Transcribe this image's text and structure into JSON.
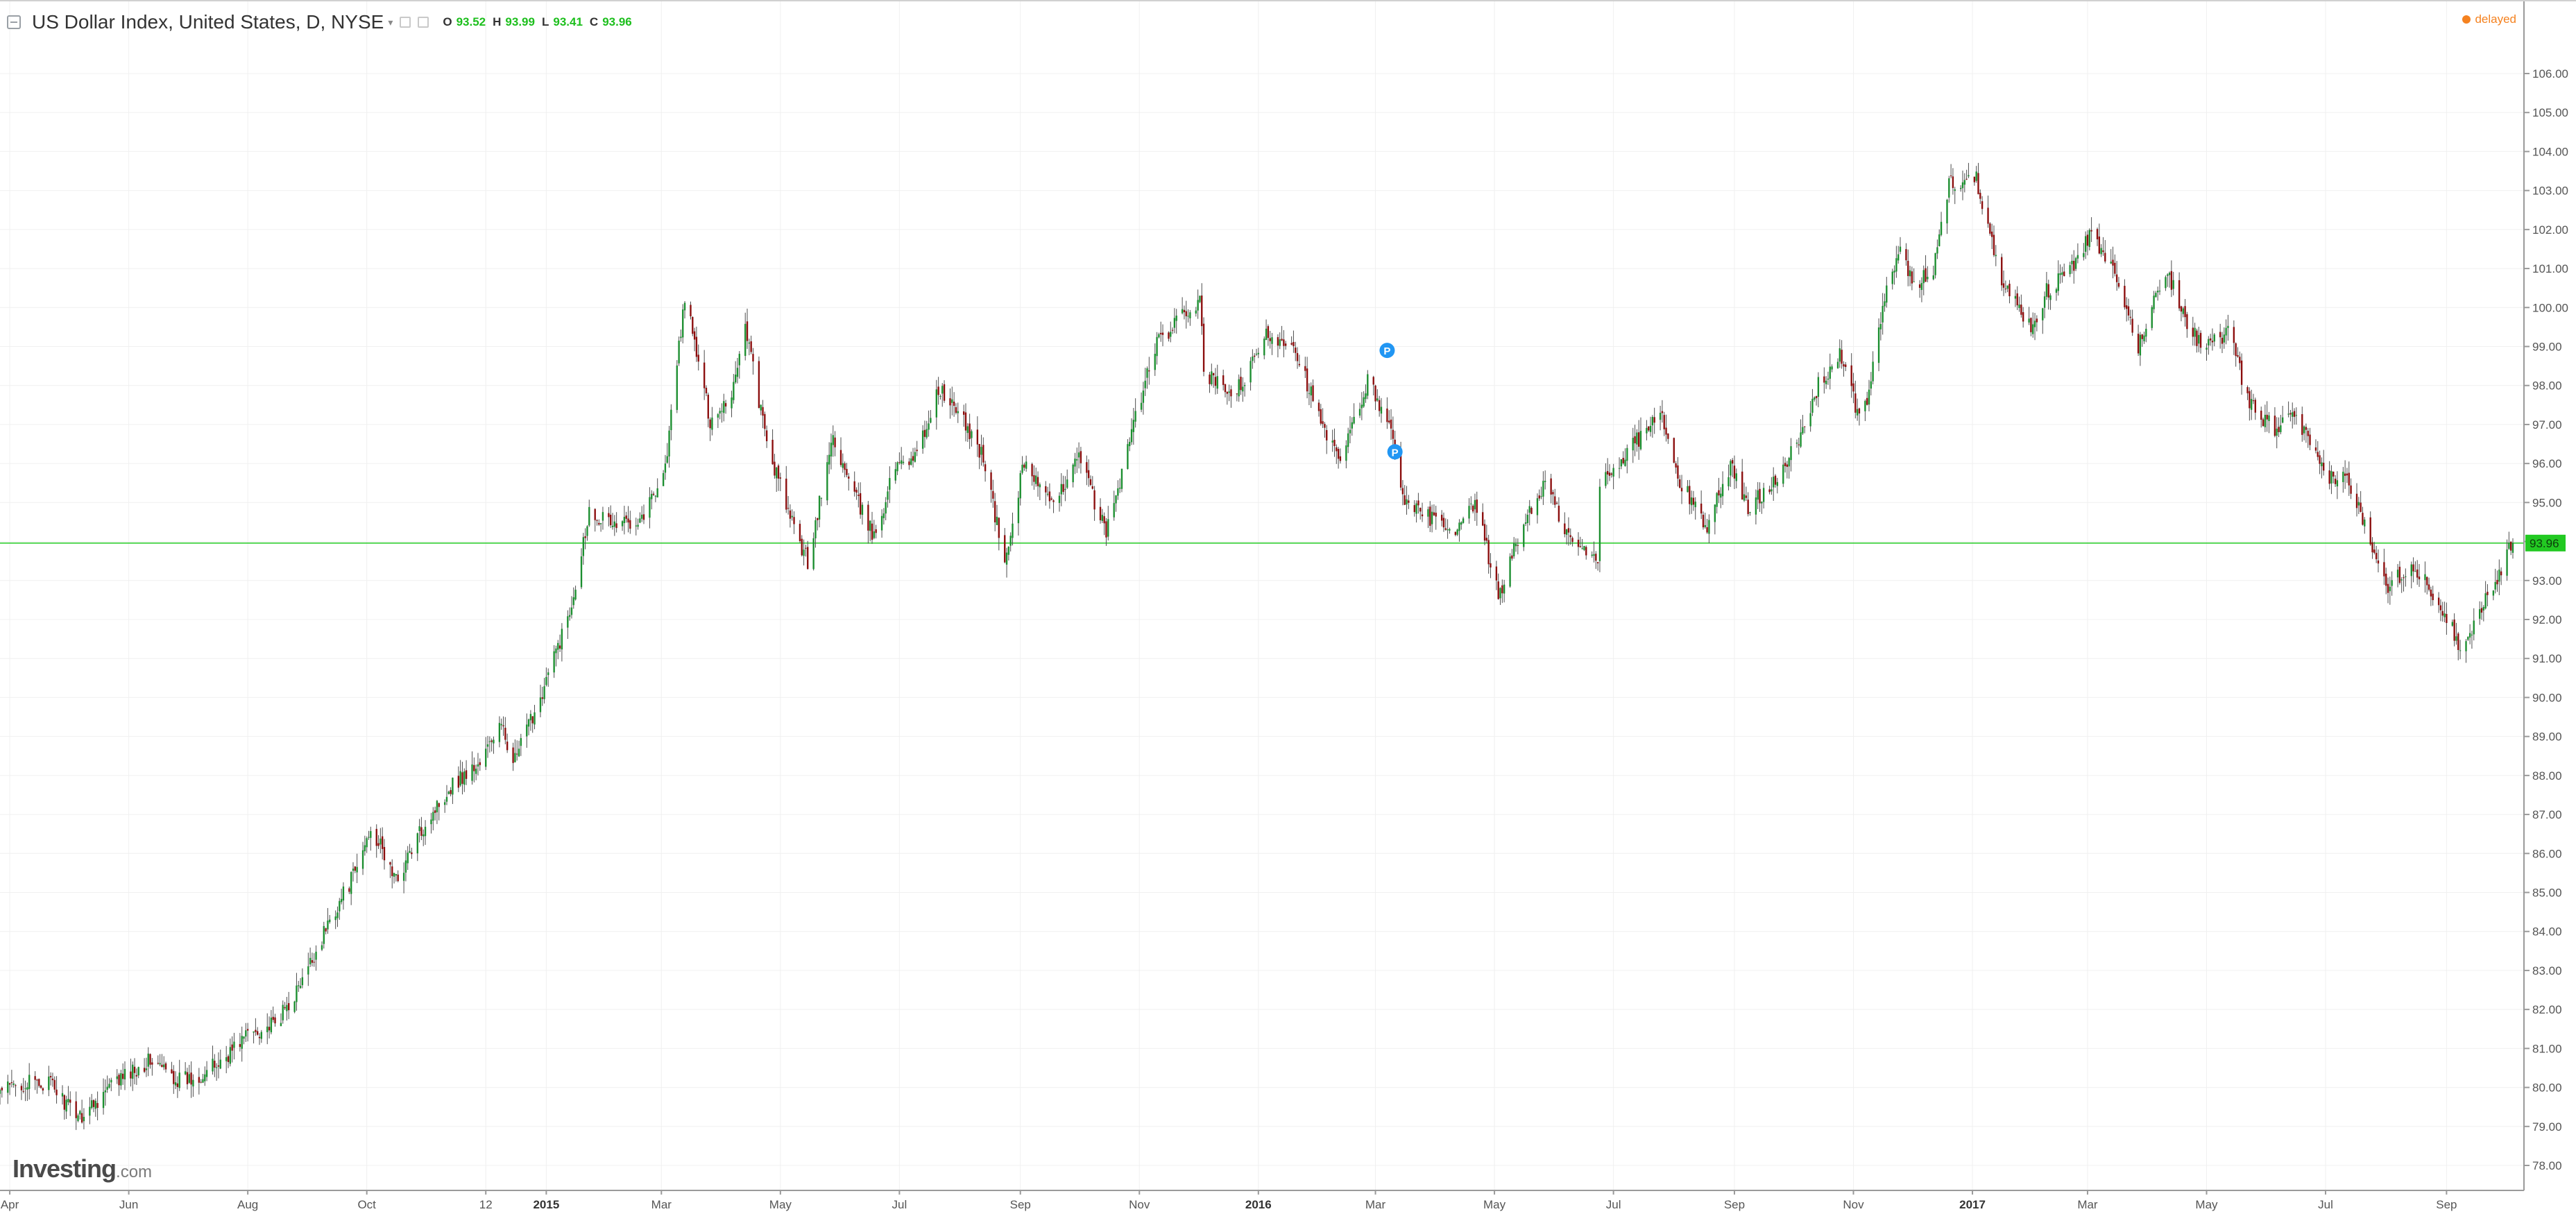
{
  "header": {
    "symbol_title": "US Dollar Index, United States, D, NYSE",
    "ohlc": {
      "o_label": "O",
      "o_value": "93.52",
      "h_label": "H",
      "h_value": "93.99",
      "l_label": "L",
      "l_value": "93.41",
      "c_label": "C",
      "c_value": "93.96"
    },
    "delayed": "delayed"
  },
  "branding": {
    "logo": "Investing",
    "logo_suffix": ".com"
  },
  "colors": {
    "up": "#1b8e2f",
    "down": "#8b0d0d",
    "wick": "#4d4d4d",
    "last_price": "#22c922",
    "grid": "#f0f0f0",
    "delayed": "#f58220",
    "event_marker": "#2196f3"
  },
  "chart_data": {
    "type": "candlestick",
    "title": "US Dollar Index, United States, D, NYSE",
    "last_price": 93.96,
    "last_price_label": "93.96",
    "ylim": [
      77.3,
      106.6
    ],
    "y_ticks": [
      "78.00",
      "79.00",
      "80.00",
      "81.00",
      "82.00",
      "83.00",
      "84.00",
      "85.00",
      "86.00",
      "87.00",
      "88.00",
      "89.00",
      "90.00",
      "91.00",
      "92.00",
      "93.00",
      "94.00",
      "95.00",
      "96.00",
      "97.00",
      "98.00",
      "99.00",
      "100.00",
      "101.00",
      "102.00",
      "103.00",
      "104.00",
      "105.00",
      "106.00"
    ],
    "x_ticks": [
      "Apr",
      "Jun",
      "Aug",
      "Oct",
      "12",
      "2015",
      "Mar",
      "May",
      "Jul",
      "Sep",
      "Nov",
      "2016",
      "Mar",
      "May",
      "Jul",
      "Sep",
      "Nov",
      "2017",
      "Mar",
      "May",
      "Jul",
      "Sep"
    ],
    "bold_x_ticks": [
      "2015",
      "2016",
      "2017"
    ],
    "x_range": [
      "2014-03-27",
      "2017-10-05"
    ],
    "event_markers": [
      {
        "date": "2016-03-07",
        "value": 98.9,
        "label": "P"
      },
      {
        "date": "2016-03-11",
        "value": 96.3,
        "label": "P"
      }
    ],
    "close_path": [
      [
        "2014-03-27",
        79.9
      ],
      [
        "2014-04-08",
        80.1
      ],
      [
        "2014-04-22",
        80.1
      ],
      [
        "2014-05-01",
        79.5
      ],
      [
        "2014-05-08",
        79.3
      ],
      [
        "2014-05-22",
        80.0
      ],
      [
        "2014-06-05",
        80.5
      ],
      [
        "2014-06-12",
        80.7
      ],
      [
        "2014-06-26",
        80.2
      ],
      [
        "2014-07-03",
        80.2
      ],
      [
        "2014-07-17",
        80.6
      ],
      [
        "2014-08-01",
        81.4
      ],
      [
        "2014-08-15",
        81.6
      ],
      [
        "2014-08-29",
        82.7
      ],
      [
        "2014-09-12",
        84.3
      ],
      [
        "2014-09-26",
        85.6
      ],
      [
        "2014-10-03",
        86.7
      ],
      [
        "2014-10-16",
        85.3
      ],
      [
        "2014-10-31",
        86.8
      ],
      [
        "2014-11-14",
        87.8
      ],
      [
        "2014-11-28",
        88.3
      ],
      [
        "2014-12-08",
        89.3
      ],
      [
        "2014-12-16",
        88.4
      ],
      [
        "2014-12-31",
        90.3
      ],
      [
        "2015-01-13",
        92.2
      ],
      [
        "2015-01-23",
        94.8
      ],
      [
        "2015-02-06",
        94.4
      ],
      [
        "2015-02-20",
        94.7
      ],
      [
        "2015-03-03",
        95.9
      ],
      [
        "2015-03-13",
        100.3
      ],
      [
        "2015-03-26",
        97.1
      ],
      [
        "2015-04-06",
        97.8
      ],
      [
        "2015-04-13",
        99.6
      ],
      [
        "2015-04-24",
        96.5
      ],
      [
        "2015-05-08",
        94.3
      ],
      [
        "2015-05-15",
        93.5
      ],
      [
        "2015-05-28",
        96.7
      ],
      [
        "2015-06-05",
        95.5
      ],
      [
        "2015-06-18",
        94.1
      ],
      [
        "2015-06-30",
        96.1
      ],
      [
        "2015-07-10",
        96.2
      ],
      [
        "2015-07-21",
        97.9
      ],
      [
        "2015-07-31",
        97.3
      ],
      [
        "2015-08-13",
        96.2
      ],
      [
        "2015-08-24",
        93.4
      ],
      [
        "2015-09-03",
        96.1
      ],
      [
        "2015-09-18",
        94.8
      ],
      [
        "2015-09-30",
        96.3
      ],
      [
        "2015-10-15",
        94.2
      ],
      [
        "2015-10-29",
        97.0
      ],
      [
        "2015-11-09",
        99.0
      ],
      [
        "2015-11-20",
        99.6
      ],
      [
        "2015-12-02",
        100.2
      ],
      [
        "2015-12-04",
        98.4
      ],
      [
        "2015-12-15",
        97.8
      ],
      [
        "2015-12-24",
        98.0
      ],
      [
        "2016-01-05",
        99.3
      ],
      [
        "2016-01-19",
        99.1
      ],
      [
        "2016-02-03",
        96.9
      ],
      [
        "2016-02-12",
        96.0
      ],
      [
        "2016-02-26",
        98.1
      ],
      [
        "2016-03-07",
        97.2
      ],
      [
        "2016-03-17",
        94.9
      ],
      [
        "2016-03-30",
        94.6
      ],
      [
        "2016-04-11",
        94.1
      ],
      [
        "2016-04-21",
        95.0
      ],
      [
        "2016-05-03",
        92.6
      ],
      [
        "2016-05-17",
        94.6
      ],
      [
        "2016-05-27",
        95.5
      ],
      [
        "2016-06-09",
        94.0
      ],
      [
        "2016-06-23",
        93.5
      ],
      [
        "2016-06-24",
        95.5
      ],
      [
        "2016-07-08",
        96.3
      ],
      [
        "2016-07-25",
        97.3
      ],
      [
        "2016-08-03",
        95.6
      ],
      [
        "2016-08-18",
        94.4
      ],
      [
        "2016-08-30",
        96.0
      ],
      [
        "2016-09-08",
        94.8
      ],
      [
        "2016-09-21",
        95.6
      ],
      [
        "2016-10-04",
        96.5
      ],
      [
        "2016-10-14",
        98.0
      ],
      [
        "2016-10-25",
        98.8
      ],
      [
        "2016-11-03",
        97.3
      ],
      [
        "2016-11-09",
        97.8
      ],
      [
        "2016-11-16",
        100.0
      ],
      [
        "2016-11-24",
        101.5
      ],
      [
        "2016-12-02",
        100.5
      ],
      [
        "2016-12-12",
        101.0
      ],
      [
        "2016-12-20",
        103.2
      ],
      [
        "2017-01-03",
        103.3
      ],
      [
        "2017-01-17",
        100.6
      ],
      [
        "2017-01-31",
        99.5
      ],
      [
        "2017-02-08",
        100.4
      ],
      [
        "2017-02-24",
        101.2
      ],
      [
        "2017-03-02",
        101.9
      ],
      [
        "2017-03-15",
        100.8
      ],
      [
        "2017-03-27",
        99.0
      ],
      [
        "2017-04-10",
        101.0
      ],
      [
        "2017-04-24",
        99.3
      ],
      [
        "2017-05-02",
        99.0
      ],
      [
        "2017-05-12",
        99.4
      ],
      [
        "2017-05-23",
        97.5
      ],
      [
        "2017-06-05",
        96.9
      ],
      [
        "2017-06-16",
        97.2
      ],
      [
        "2017-06-30",
        95.7
      ],
      [
        "2017-07-12",
        95.6
      ],
      [
        "2017-07-26",
        93.8
      ],
      [
        "2017-08-02",
        92.9
      ],
      [
        "2017-08-14",
        93.4
      ],
      [
        "2017-08-28",
        92.5
      ],
      [
        "2017-09-08",
        91.3
      ],
      [
        "2017-09-15",
        91.9
      ],
      [
        "2017-09-26",
        93.0
      ],
      [
        "2017-10-05",
        93.96
      ]
    ]
  }
}
